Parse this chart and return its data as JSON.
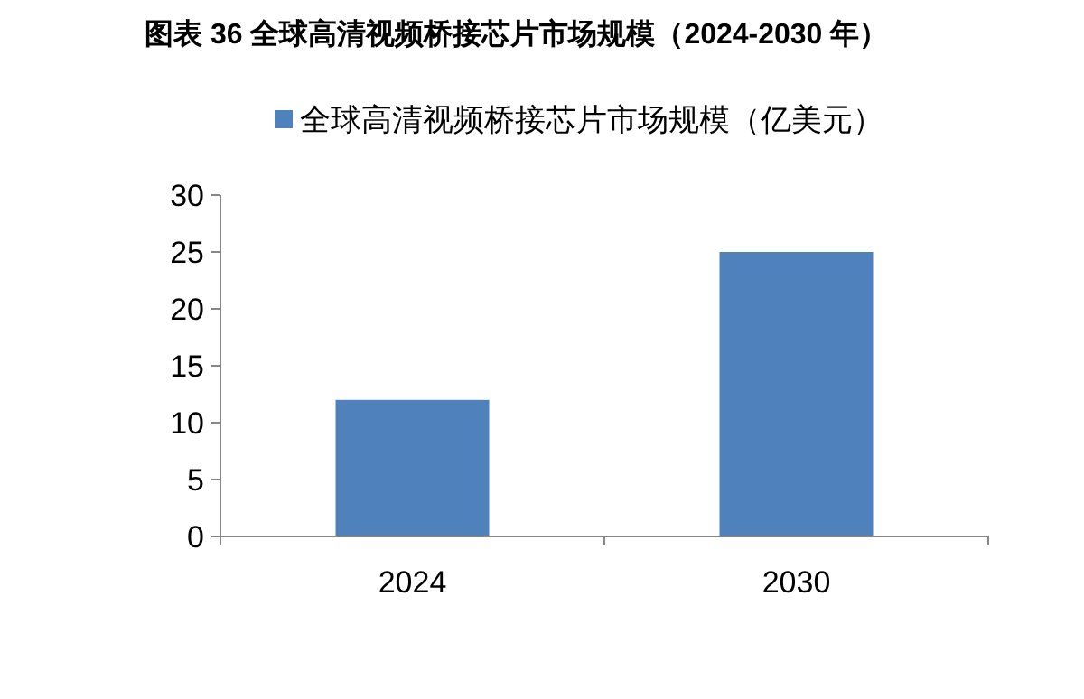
{
  "chart_data": {
    "type": "bar",
    "title": "图表 36 全球高清视频桥接芯片市场规模（2024-2030 年）",
    "categories": [
      "2024",
      "2030"
    ],
    "series": [
      {
        "name": "全球高清视频桥接芯片市场规模（亿美元）",
        "color": "#4f81bd",
        "values": [
          12,
          25
        ]
      }
    ],
    "ylim": [
      0,
      30
    ],
    "yticks": [
      0,
      5,
      10,
      15,
      20,
      25,
      30
    ],
    "legend": "top",
    "grid": false
  }
}
